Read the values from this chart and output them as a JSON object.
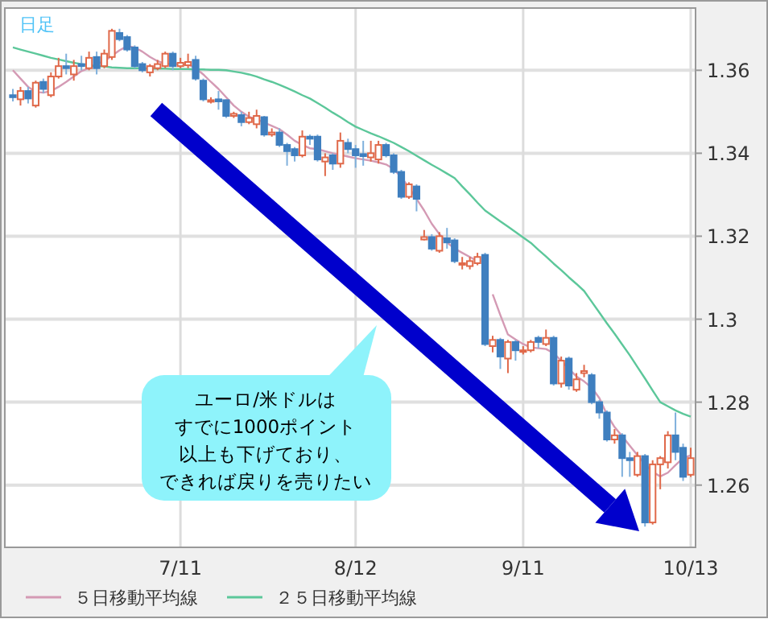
{
  "chart_data": {
    "type": "candlestick",
    "title": "日足",
    "categories": [
      null,
      null,
      null,
      null,
      null,
      null,
      null,
      null,
      null,
      null,
      null,
      null,
      null,
      null,
      null,
      null,
      null,
      null,
      null,
      null,
      null,
      null,
      "7/11",
      null,
      null,
      null,
      null,
      null,
      null,
      null,
      null,
      null,
      null,
      null,
      null,
      null,
      null,
      null,
      null,
      null,
      null,
      null,
      null,
      null,
      null,
      "8/12",
      null,
      null,
      null,
      null,
      null,
      null,
      null,
      null,
      null,
      null,
      null,
      null,
      null,
      null,
      null,
      null,
      null,
      null,
      null,
      null,
      null,
      "9/11",
      null,
      null,
      null,
      null,
      null,
      null,
      null,
      null,
      null,
      null,
      null,
      null,
      null,
      null,
      null,
      null,
      null,
      null,
      null,
      null,
      null,
      "10/13"
    ],
    "ohlc": [
      [
        1.354,
        1.3555,
        1.3525,
        1.3535
      ],
      [
        1.353,
        1.356,
        1.3515,
        1.355
      ],
      [
        1.355,
        1.356,
        1.352,
        1.3532
      ],
      [
        1.3515,
        1.3575,
        1.351,
        1.357
      ],
      [
        1.3572,
        1.358,
        1.3545,
        1.3555
      ],
      [
        1.354,
        1.3595,
        1.3535,
        1.3585
      ],
      [
        1.3585,
        1.363,
        1.358,
        1.361
      ],
      [
        1.361,
        1.364,
        1.359,
        1.3605
      ],
      [
        1.359,
        1.3625,
        1.3575,
        1.361
      ],
      [
        1.3615,
        1.3635,
        1.36,
        1.361
      ],
      [
        1.3605,
        1.3645,
        1.36,
        1.363
      ],
      [
        1.3632,
        1.3645,
        1.359,
        1.3605
      ],
      [
        1.361,
        1.365,
        1.3605,
        1.364
      ],
      [
        1.3632,
        1.37,
        1.3625,
        1.3695
      ],
      [
        1.369,
        1.37,
        1.367,
        1.3675
      ],
      [
        1.368,
        1.3685,
        1.3645,
        1.365
      ],
      [
        1.3655,
        1.366,
        1.3605,
        1.361
      ],
      [
        1.3615,
        1.362,
        1.3595,
        1.36
      ],
      [
        1.3595,
        1.3615,
        1.3585,
        1.361
      ],
      [
        1.3605,
        1.3625,
        1.36,
        1.3615
      ],
      [
        1.361,
        1.3645,
        1.3605,
        1.364
      ],
      [
        1.364,
        1.3645,
        1.36,
        1.361
      ],
      [
        1.361,
        1.363,
        1.3605,
        1.3618
      ],
      [
        1.3612,
        1.364,
        1.3605,
        1.362
      ],
      [
        1.3625,
        1.3635,
        1.3575,
        1.358
      ],
      [
        1.3575,
        1.358,
        1.3525,
        1.353
      ],
      [
        1.3525,
        1.3535,
        1.352,
        1.3528
      ],
      [
        1.353,
        1.355,
        1.3505,
        1.3525
      ],
      [
        1.3528,
        1.353,
        1.3485,
        1.349
      ],
      [
        1.349,
        1.35,
        1.3485,
        1.3495
      ],
      [
        1.3492,
        1.35,
        1.3465,
        1.3475
      ],
      [
        1.3475,
        1.35,
        1.347,
        1.3485
      ],
      [
        1.347,
        1.3505,
        1.346,
        1.349
      ],
      [
        1.3487,
        1.349,
        1.344,
        1.3445
      ],
      [
        1.3445,
        1.346,
        1.344,
        1.345
      ],
      [
        1.345,
        1.346,
        1.3415,
        1.342
      ],
      [
        1.342,
        1.3425,
        1.337,
        1.3405
      ],
      [
        1.341,
        1.3415,
        1.338,
        1.3395
      ],
      [
        1.3395,
        1.3455,
        1.339,
        1.344
      ],
      [
        1.344,
        1.3445,
        1.342,
        1.3435
      ],
      [
        1.344,
        1.3445,
        1.338,
        1.3385
      ],
      [
        1.338,
        1.34,
        1.3345,
        1.339
      ],
      [
        1.3395,
        1.34,
        1.336,
        1.3375
      ],
      [
        1.3375,
        1.345,
        1.3365,
        1.343
      ],
      [
        1.3425,
        1.3435,
        1.34,
        1.341
      ],
      [
        1.341,
        1.342,
        1.3365,
        1.3395
      ],
      [
        1.3398,
        1.343,
        1.337,
        1.3393
      ],
      [
        1.339,
        1.343,
        1.338,
        1.34
      ],
      [
        1.3385,
        1.343,
        1.3375,
        1.342
      ],
      [
        1.342,
        1.3425,
        1.339,
        1.3395
      ],
      [
        1.3395,
        1.34,
        1.335,
        1.3355
      ],
      [
        1.3355,
        1.336,
        1.329,
        1.3295
      ],
      [
        1.3295,
        1.333,
        1.329,
        1.3325
      ],
      [
        1.332,
        1.3325,
        1.326,
        1.329
      ],
      [
        1.3192,
        1.3215,
        1.319,
        1.3198
      ],
      [
        1.3198,
        1.3205,
        1.3165,
        1.317
      ],
      [
        1.3165,
        1.321,
        1.316,
        1.32
      ],
      [
        1.3195,
        1.322,
        1.317,
        1.3185
      ],
      [
        1.319,
        1.3195,
        1.3135,
        1.314
      ],
      [
        1.3132,
        1.315,
        1.312,
        1.3135
      ],
      [
        1.3128,
        1.315,
        1.312,
        1.314
      ],
      [
        1.3135,
        1.316,
        1.313,
        1.315
      ],
      [
        1.3155,
        1.316,
        1.2935,
        1.294
      ],
      [
        1.2935,
        1.296,
        1.292,
        1.295
      ],
      [
        1.295,
        1.2955,
        1.288,
        1.291
      ],
      [
        1.2905,
        1.295,
        1.287,
        1.2945
      ],
      [
        1.2945,
        1.295,
        1.29,
        1.2925
      ],
      [
        1.2922,
        1.2935,
        1.2915,
        1.2925
      ],
      [
        1.2925,
        1.295,
        1.292,
        1.2945
      ],
      [
        1.2955,
        1.296,
        1.293,
        1.2945
      ],
      [
        1.294,
        1.2975,
        1.2935,
        1.2955
      ],
      [
        1.2955,
        1.296,
        1.284,
        1.2845
      ],
      [
        1.2845,
        1.291,
        1.2835,
        1.29
      ],
      [
        1.2905,
        1.291,
        1.283,
        1.284
      ],
      [
        1.283,
        1.287,
        1.2825,
        1.2855
      ],
      [
        1.287,
        1.289,
        1.286,
        1.2875
      ],
      [
        1.2865,
        1.287,
        1.2795,
        1.28
      ],
      [
        1.28,
        1.2805,
        1.276,
        1.2775
      ],
      [
        1.2775,
        1.278,
        1.2705,
        1.271
      ],
      [
        1.271,
        1.2735,
        1.27,
        1.272
      ],
      [
        1.272,
        1.2725,
        1.262,
        1.2665
      ],
      [
        1.2665,
        1.268,
        1.262,
        1.266
      ],
      [
        1.2625,
        1.268,
        1.262,
        1.267
      ],
      [
        1.267,
        1.2675,
        1.25,
        1.251
      ],
      [
        1.251,
        1.266,
        1.2505,
        1.265
      ],
      [
        1.265,
        1.267,
        1.259,
        1.2665
      ],
      [
        1.2655,
        1.273,
        1.264,
        1.272
      ],
      [
        1.272,
        1.2775,
        1.266,
        1.268
      ],
      [
        1.269,
        1.27,
        1.261,
        1.262
      ],
      [
        1.2625,
        1.269,
        1.262,
        1.2665
      ]
    ],
    "series": [
      {
        "name": "５日移動平均線",
        "type": "line",
        "color": "#d49ab4",
        "values": [
          1.36,
          1.358,
          1.356,
          1.3548,
          1.3546,
          1.355,
          1.356,
          1.3572,
          1.3585,
          1.3598,
          1.3605,
          1.3615,
          1.3622,
          1.3635,
          1.3648,
          1.3658,
          1.3655,
          1.3645,
          1.3632,
          1.3622,
          1.3616,
          1.3615,
          1.3615,
          1.3614,
          1.3605,
          1.359,
          1.3572,
          1.3555,
          1.3535,
          1.3515,
          1.35,
          1.3488,
          1.3482,
          1.3474,
          1.3466,
          1.3458,
          1.3445,
          1.343,
          1.342,
          1.3412,
          1.341,
          1.3405,
          1.34,
          1.3396,
          1.3392,
          1.3388,
          1.3385,
          1.3382,
          1.3378,
          1.3373,
          1.3362,
          1.3342,
          1.3318,
          1.329,
          1.3262,
          1.323,
          1.3205,
          1.3185,
          1.317,
          1.316,
          1.315,
          1.314,
          null,
          1.306,
          1.301,
          1.2963,
          1.2951,
          1.294,
          1.2932,
          1.293,
          1.2928,
          1.2918,
          1.29,
          1.288,
          1.2862,
          1.285,
          1.2835,
          1.281,
          1.277,
          1.274,
          1.2718,
          1.2695,
          1.2672,
          1.265,
          1.2632,
          1.2621,
          1.263,
          1.2648,
          1.2665,
          1.2672
        ]
      },
      {
        "name": "２５日移動平均線",
        "type": "line",
        "color": "#5cc79a",
        "values": [
          1.3655,
          1.365,
          1.3645,
          1.364,
          1.3635,
          1.363,
          1.3626,
          1.3622,
          1.3618,
          1.3615,
          1.3612,
          1.361,
          1.3609,
          1.3607,
          1.3606,
          1.3605,
          1.3605,
          1.3605,
          1.3604,
          1.3604,
          1.3604,
          1.3603,
          1.3603,
          1.3603,
          1.3602,
          1.3602,
          1.3601,
          1.3601,
          1.36,
          1.3597,
          1.3594,
          1.359,
          1.3585,
          1.3578,
          1.3572,
          1.3565,
          1.3557,
          1.3549,
          1.354,
          1.3532,
          1.3521,
          1.351,
          1.3498,
          1.3487,
          1.3475,
          1.3464,
          1.3456,
          1.3448,
          1.3441,
          1.3433,
          1.3425,
          1.3415,
          1.3405,
          1.3394,
          1.3383,
          1.3372,
          1.3362,
          1.3351,
          1.334,
          1.332,
          1.3301,
          1.3281,
          1.3262,
          1.3249,
          1.3236,
          1.3223,
          1.321,
          1.3197,
          1.3184,
          1.3167,
          1.3151,
          1.3134,
          1.3118,
          1.3101,
          1.3085,
          1.3068,
          1.3042,
          1.3016,
          1.299,
          1.2965,
          1.2939,
          1.2913,
          1.2885,
          1.2857,
          1.2828,
          1.28,
          1.279,
          1.278,
          1.2772,
          1.2765
        ]
      }
    ],
    "ylim": [
      1.245,
      1.375
    ],
    "yticks": [
      1.26,
      1.28,
      1.3,
      1.32,
      1.34,
      1.36
    ],
    "grid": true,
    "legend": "bottom",
    "annotations": [
      "ユーロ/米ドルは",
      "すでに1000ポイント",
      "以上も下げており、",
      "できれば戻りを売りたい"
    ]
  }
}
